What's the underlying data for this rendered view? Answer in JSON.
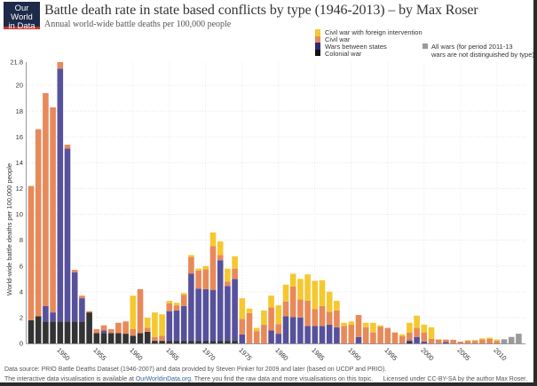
{
  "logo": {
    "line1": "Our World",
    "line2": "in Data"
  },
  "chart_data": {
    "type": "bar",
    "stacked": true,
    "title": "Battle death rate in state based conflicts by type (1946-2013) – by Max Roser",
    "subtitle": "Annual world-wide battle deaths per 100,000 people",
    "ylabel": "World-wide battle deaths per 100,000 people",
    "xlabel": "",
    "ylim": [
      0,
      21.8
    ],
    "yticks": [
      "0",
      "2",
      "4",
      "6",
      "8",
      "10",
      "12",
      "14",
      "16",
      "18",
      "20",
      "21.8"
    ],
    "xticks": [
      "1950",
      "1955",
      "1960",
      "1965",
      "1970",
      "1975",
      "1980",
      "1985",
      "1990",
      "1995",
      "2000",
      "2005",
      "2010"
    ],
    "grid": true,
    "legend_position": "top-right",
    "x": [
      1946,
      1947,
      1948,
      1949,
      1950,
      1951,
      1952,
      1953,
      1954,
      1955,
      1956,
      1957,
      1958,
      1959,
      1960,
      1961,
      1962,
      1963,
      1964,
      1965,
      1966,
      1967,
      1968,
      1969,
      1970,
      1971,
      1972,
      1973,
      1974,
      1975,
      1976,
      1977,
      1978,
      1979,
      1980,
      1981,
      1982,
      1983,
      1984,
      1985,
      1986,
      1987,
      1988,
      1989,
      1990,
      1991,
      1992,
      1993,
      1994,
      1995,
      1996,
      1997,
      1998,
      1999,
      2000,
      2001,
      2002,
      2003,
      2004,
      2005,
      2006,
      2007,
      2008,
      2009,
      2010,
      2011,
      2012,
      2013
    ],
    "series": [
      {
        "name": "Colonial war",
        "color": "#333333",
        "values": [
          1.8,
          2.1,
          1.7,
          1.7,
          1.7,
          1.7,
          1.7,
          1.7,
          2.4,
          0.8,
          0.8,
          0.8,
          0.8,
          0.75,
          0.6,
          0.8,
          0.9,
          0.2,
          0.2,
          0.2,
          0.2,
          0.2,
          0.2,
          0.2,
          0.2,
          0.2,
          0.2,
          0.2,
          0.2,
          0,
          0,
          0,
          0,
          0,
          0,
          0,
          0,
          0,
          0,
          0,
          0,
          0,
          0,
          0,
          0,
          0,
          0,
          0,
          0,
          0,
          0,
          0,
          0.15,
          0,
          0,
          0,
          0,
          0,
          0,
          0,
          0,
          0,
          0,
          0,
          0,
          0,
          0,
          0
        ]
      },
      {
        "name": "Wars between states",
        "color": "#57519c",
        "values": [
          0,
          0,
          1.2,
          0.7,
          19.6,
          13.4,
          3.8,
          1.8,
          0,
          0,
          0.2,
          0,
          0,
          0,
          0,
          0,
          0,
          0,
          0,
          2.3,
          2.35,
          2.7,
          5.2,
          4.05,
          4.0,
          3.95,
          6.25,
          4.25,
          4.8,
          0.7,
          0,
          0,
          0,
          1.0,
          0.75,
          2.1,
          2.05,
          2.0,
          1.35,
          1.35,
          1.35,
          1.45,
          1.25,
          0,
          0,
          0.5,
          0,
          0,
          0,
          0,
          0,
          0,
          0.1,
          0.5,
          0.15,
          0,
          0,
          0.1,
          0,
          0,
          0,
          0,
          0,
          0,
          0,
          0,
          0,
          0
        ]
      },
      {
        "name": "Civil war",
        "color": "#e8895a",
        "values": [
          10.4,
          14.5,
          16.5,
          15.9,
          0.5,
          0.3,
          0.2,
          0.2,
          0.1,
          0.3,
          0.4,
          0.3,
          0.8,
          0.95,
          0.5,
          3.4,
          0.3,
          0.3,
          0.4,
          0.6,
          0.4,
          0.85,
          1.3,
          1.4,
          1.55,
          3.4,
          0.4,
          0.35,
          0.8,
          1.2,
          2.35,
          0.95,
          1.45,
          1.8,
          0.75,
          1.15,
          2.35,
          1.4,
          1.95,
          1.3,
          1.55,
          1.0,
          1.3,
          1.35,
          1.45,
          1.7,
          1.25,
          0.85,
          1.3,
          1.2,
          0.85,
          0.55,
          0.6,
          0.7,
          0.7,
          0.35,
          0.3,
          0.2,
          0.28,
          0.14,
          0.2,
          0.2,
          0.3,
          0.35,
          0.2,
          0,
          0,
          0
        ]
      },
      {
        "name": "Civil war with foreign intervention",
        "color": "#f5c830",
        "values": [
          0,
          0,
          0,
          0,
          0,
          0,
          0,
          0,
          0,
          0,
          0,
          0,
          0,
          0,
          2.6,
          0,
          0.8,
          1.9,
          1.65,
          0.2,
          0.2,
          0.15,
          0.15,
          0.15,
          0.25,
          1.05,
          1.05,
          1.0,
          0.95,
          1.6,
          0.35,
          0.25,
          1.1,
          0.9,
          1.45,
          1.3,
          1.0,
          1.6,
          2.05,
          2.2,
          2.0,
          1.55,
          0.75,
          0.25,
          0.25,
          0,
          0.35,
          0.75,
          0.1,
          0,
          0,
          0.15,
          0.75,
          0.95,
          0.6,
          0.9,
          0.02,
          0,
          0,
          0,
          0.05,
          0.07,
          0.1,
          0.1,
          0.1,
          0,
          0,
          0
        ]
      },
      {
        "name": "All wars (for period 2011-13 wars are not distinguished by type)",
        "color": "#9a9a9a",
        "values": [
          0,
          0,
          0,
          0,
          0,
          0,
          0,
          0,
          0,
          0,
          0,
          0,
          0,
          0,
          0,
          0,
          0,
          0,
          0,
          0,
          0,
          0,
          0,
          0,
          0,
          0,
          0,
          0,
          0,
          0,
          0,
          0,
          0,
          0,
          0,
          0,
          0,
          0,
          0,
          0,
          0,
          0,
          0,
          0,
          0,
          0,
          0,
          0,
          0,
          0,
          0,
          0,
          0,
          0,
          0,
          0,
          0,
          0,
          0,
          0,
          0,
          0,
          0,
          0,
          0,
          0.32,
          0.5,
          0.75
        ]
      }
    ],
    "legend": {
      "foreign": "Civil war with foreign intervention",
      "civil": "Civil war",
      "interstate": "Wars between states",
      "colonial": "Colonial war",
      "all_line1": "All wars (for period 2011-13",
      "all_line2": "wars are not distinguished by type)"
    }
  },
  "footer": {
    "source": "Data source:  PRIO Battle Deaths Dataset (1946-2007) and data provided by Steven Pinker for 2009 and later (based on UCDP and PRIO).",
    "interactive_prefix": "The interactive data visualisation is available at ",
    "link": "OurWorldinData.org",
    "interactive_suffix": ". There you find the raw data and more visualisations on this topic.",
    "license": "Licensed under CC-BY-SA by the author Max Roser."
  }
}
